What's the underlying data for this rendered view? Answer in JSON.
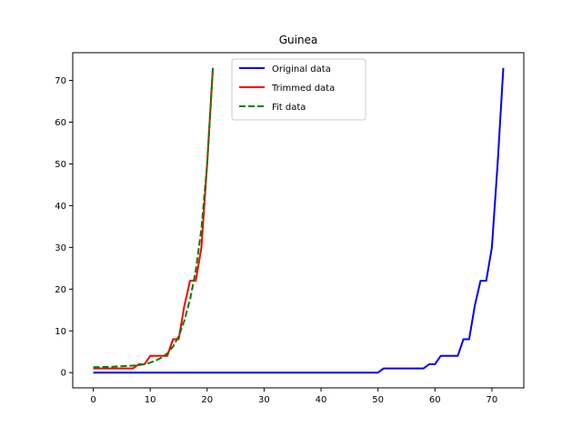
{
  "chart_data": {
    "type": "line",
    "title": "Guinea",
    "xlabel": "",
    "ylabel": "",
    "xlim": [
      -3.6,
      75.6
    ],
    "ylim": [
      -3.65,
      76.65
    ],
    "xticks": [
      0,
      10,
      20,
      30,
      40,
      50,
      60,
      70
    ],
    "yticks": [
      0,
      10,
      20,
      30,
      40,
      50,
      60,
      70
    ],
    "grid": false,
    "legend_position": "upper center",
    "series": [
      {
        "name": "Original data",
        "color": "#0000ff",
        "style": "solid",
        "x": [
          0,
          50,
          51,
          58,
          59,
          60,
          61,
          64,
          65,
          66,
          67,
          68,
          69,
          70,
          71,
          72
        ],
        "y": [
          0,
          0,
          1,
          1,
          2,
          2,
          4,
          4,
          8,
          8,
          16,
          22,
          22,
          30,
          50,
          73
        ]
      },
      {
        "name": "Trimmed data",
        "color": "#ff0000",
        "style": "solid",
        "x": [
          0,
          7,
          8,
          9,
          10,
          13,
          14,
          15,
          16,
          17,
          18,
          19,
          20,
          21
        ],
        "y": [
          1,
          1,
          2,
          2,
          4,
          4,
          8,
          8,
          16,
          22,
          22,
          30,
          50,
          73
        ]
      },
      {
        "name": "Fit data",
        "color": "#008000",
        "style": "dashed",
        "x": [
          0,
          3,
          6,
          8,
          9,
          10,
          11,
          12,
          13,
          14,
          15,
          16,
          17,
          18,
          19,
          20,
          21
        ],
        "y": [
          1.3,
          1.4,
          1.6,
          1.8,
          2.0,
          2.4,
          2.9,
          3.6,
          4.6,
          6.2,
          8.7,
          12.4,
          17.5,
          24.5,
          34.5,
          50,
          73
        ]
      }
    ]
  }
}
